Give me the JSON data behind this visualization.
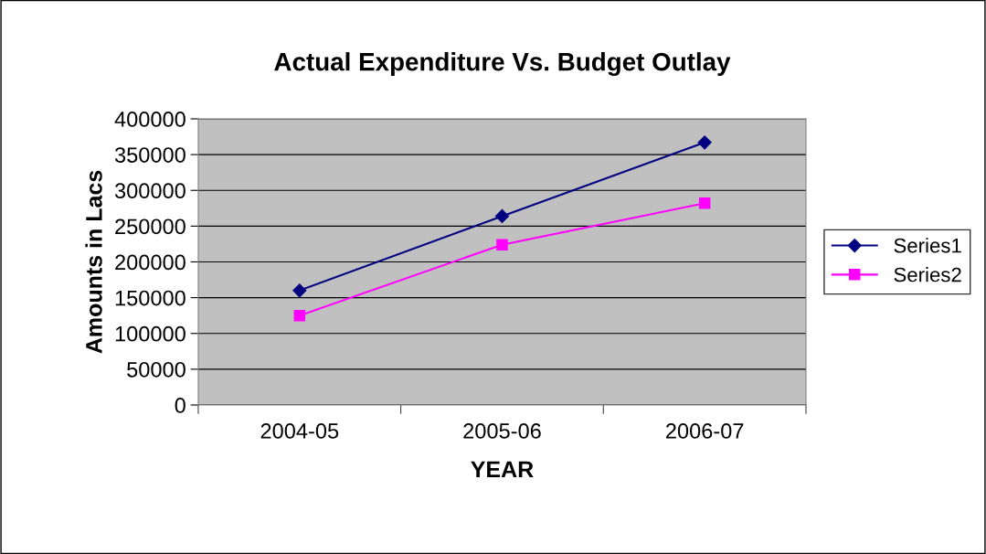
{
  "chart_data": {
    "type": "line",
    "title": "Actual Expenditure Vs. Budget Outlay",
    "xlabel": "YEAR",
    "ylabel": "Amounts in Lacs",
    "categories": [
      "2004-05",
      "2005-06",
      "2006-07"
    ],
    "series": [
      {
        "name": "Series1",
        "color": "#000080",
        "marker": "diamond",
        "values": [
          160000,
          264000,
          367000
        ]
      },
      {
        "name": "Series2",
        "color": "#ff00ff",
        "marker": "square",
        "values": [
          125000,
          224000,
          282000
        ]
      }
    ],
    "ylim": [
      0,
      400000
    ],
    "yticks": [
      0,
      50000,
      100000,
      150000,
      200000,
      250000,
      300000,
      350000,
      400000
    ],
    "grid": "y",
    "legend": "right",
    "line_style": "solid"
  }
}
